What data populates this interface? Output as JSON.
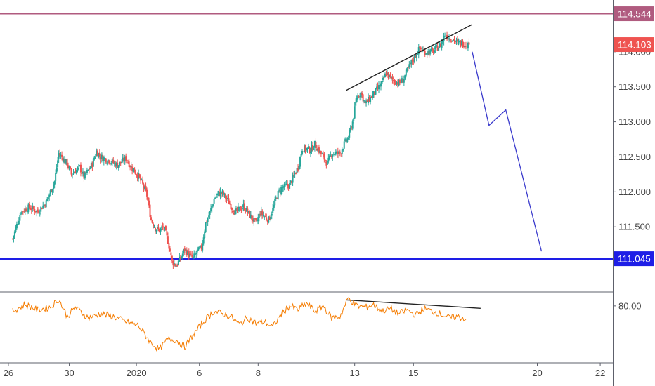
{
  "chart_data": [
    {
      "type": "candlestick",
      "symbol": "",
      "ylim": [
        110.58,
        114.74
      ],
      "y_ticks": [
        "114.000",
        "113.500",
        "113.000",
        "112.500",
        "112.000",
        "111.500"
      ],
      "x_ticks": [
        "26",
        "30",
        "2020",
        "6",
        "8",
        "13",
        "15",
        "20",
        "22"
      ],
      "x_tick_positions": [
        -1,
        13.5,
        29.5,
        44.5,
        58.5,
        81.5,
        95.5,
        125,
        140
      ],
      "x_domain": [
        -3,
        143
      ],
      "price_tags": [
        {
          "label": "114.544",
          "value": 114.544,
          "color": "#b05b7f"
        },
        {
          "label": "114.103",
          "value": 114.103,
          "color": "#ef5350"
        },
        {
          "label": "111.045",
          "value": 111.045,
          "color": "#1e1ee6"
        }
      ],
      "horizontal_levels": [
        {
          "value": 114.544,
          "color": "#b05b7f"
        },
        {
          "value": 111.045,
          "color": "#1e1ee6"
        }
      ],
      "close_anchors": [
        [
          0,
          111.33
        ],
        [
          2,
          111.72
        ],
        [
          4,
          111.78
        ],
        [
          6,
          111.72
        ],
        [
          8,
          111.85
        ],
        [
          10,
          112.15
        ],
        [
          11,
          112.55
        ],
        [
          13,
          112.4
        ],
        [
          14,
          112.25
        ],
        [
          16,
          112.35
        ],
        [
          17,
          112.21
        ],
        [
          19,
          112.4
        ],
        [
          20,
          112.58
        ],
        [
          21,
          112.5
        ],
        [
          23,
          112.45
        ],
        [
          25,
          112.38
        ],
        [
          27,
          112.48
        ],
        [
          28,
          112.38
        ],
        [
          30,
          112.22
        ],
        [
          31,
          112.1
        ],
        [
          32,
          111.95
        ],
        [
          33,
          111.6
        ],
        [
          34,
          111.48
        ],
        [
          35,
          111.45
        ],
        [
          36,
          111.5
        ],
        [
          37,
          111.3
        ],
        [
          38,
          111.0
        ],
        [
          39,
          110.95
        ],
        [
          40,
          111.05
        ],
        [
          41,
          111.18
        ],
        [
          42,
          111.1
        ],
        [
          43,
          111.05
        ],
        [
          44,
          111.15
        ],
        [
          45,
          111.2
        ],
        [
          46,
          111.55
        ],
        [
          47,
          111.7
        ],
        [
          48,
          111.9
        ],
        [
          49,
          111.98
        ],
        [
          50,
          111.98
        ],
        [
          51,
          111.9
        ],
        [
          53,
          111.7
        ],
        [
          55,
          111.8
        ],
        [
          57,
          111.62
        ],
        [
          58,
          111.55
        ],
        [
          59,
          111.7
        ],
        [
          61,
          111.6
        ],
        [
          62,
          111.75
        ],
        [
          63,
          111.95
        ],
        [
          64,
          112.05
        ],
        [
          66,
          112.1
        ],
        [
          68,
          112.35
        ],
        [
          69,
          112.62
        ],
        [
          71,
          112.6
        ],
        [
          72,
          112.68
        ],
        [
          74,
          112.5
        ],
        [
          75,
          112.4
        ],
        [
          76,
          112.55
        ],
        [
          78,
          112.55
        ],
        [
          79,
          112.68
        ],
        [
          80,
          112.78
        ],
        [
          81,
          113.0
        ],
        [
          82,
          113.35
        ],
        [
          83,
          113.42
        ],
        [
          84,
          113.25
        ],
        [
          86,
          113.4
        ],
        [
          88,
          113.55
        ],
        [
          89,
          113.7
        ],
        [
          90,
          113.62
        ],
        [
          92,
          113.55
        ],
        [
          93,
          113.6
        ],
        [
          95,
          113.85
        ],
        [
          97,
          114.05
        ],
        [
          98,
          114.0
        ],
        [
          100,
          114.0
        ],
        [
          102,
          114.1
        ],
        [
          103,
          114.25
        ],
        [
          104,
          114.2
        ],
        [
          105,
          114.18
        ],
        [
          106,
          114.12
        ],
        [
          107,
          114.13
        ],
        [
          108,
          114.103
        ]
      ],
      "trendlines": [
        {
          "panel": "price",
          "from": [
            79.5,
            113.45
          ],
          "to": [
            109.5,
            114.39
          ],
          "color": "#222222"
        },
        {
          "panel": "rsi",
          "from": [
            79.5,
            84.5
          ],
          "to": [
            111.5,
            78.2
          ],
          "color": "#222222"
        }
      ],
      "projection": {
        "points": [
          [
            109.5,
            114.0
          ],
          [
            113.5,
            112.95
          ],
          [
            117.5,
            113.17
          ],
          [
            126.0,
            111.15
          ]
        ],
        "color": "#3a3acc"
      }
    },
    {
      "type": "line",
      "indicator_label": "80.00",
      "reference_value": 80,
      "ylim": [
        37,
        90
      ],
      "series": [
        {
          "color": "#f57c00",
          "anchors": [
            [
              0,
              76
            ],
            [
              3,
              81
            ],
            [
              6,
              77
            ],
            [
              9,
              79
            ],
            [
              11,
              85
            ],
            [
              13,
              72
            ],
            [
              15,
              79
            ],
            [
              18,
              71
            ],
            [
              21,
              74
            ],
            [
              24,
              72
            ],
            [
              27,
              68
            ],
            [
              30,
              65
            ],
            [
              33,
              52
            ],
            [
              35,
              47
            ],
            [
              37,
              55
            ],
            [
              39,
              54
            ],
            [
              41,
              49
            ],
            [
              43,
              58
            ],
            [
              46,
              70
            ],
            [
              48,
              76
            ],
            [
              50,
              74
            ],
            [
              52,
              72
            ],
            [
              54,
              66
            ],
            [
              56,
              71
            ],
            [
              58,
              67
            ],
            [
              60,
              68
            ],
            [
              62,
              64
            ],
            [
              64,
              74
            ],
            [
              66,
              80
            ],
            [
              68,
              77
            ],
            [
              70,
              82
            ],
            [
              72,
              76
            ],
            [
              74,
              80
            ],
            [
              76,
              71
            ],
            [
              78,
              72
            ],
            [
              80,
              86
            ],
            [
              82,
              80
            ],
            [
              84,
              79
            ],
            [
              86,
              81
            ],
            [
              88,
              76
            ],
            [
              90,
              78
            ],
            [
              92,
              74
            ],
            [
              94,
              77
            ],
            [
              96,
              73
            ],
            [
              98,
              78
            ],
            [
              100,
              76
            ],
            [
              102,
              74
            ],
            [
              104,
              71
            ],
            [
              106,
              72
            ],
            [
              108,
              70
            ]
          ]
        }
      ]
    }
  ]
}
